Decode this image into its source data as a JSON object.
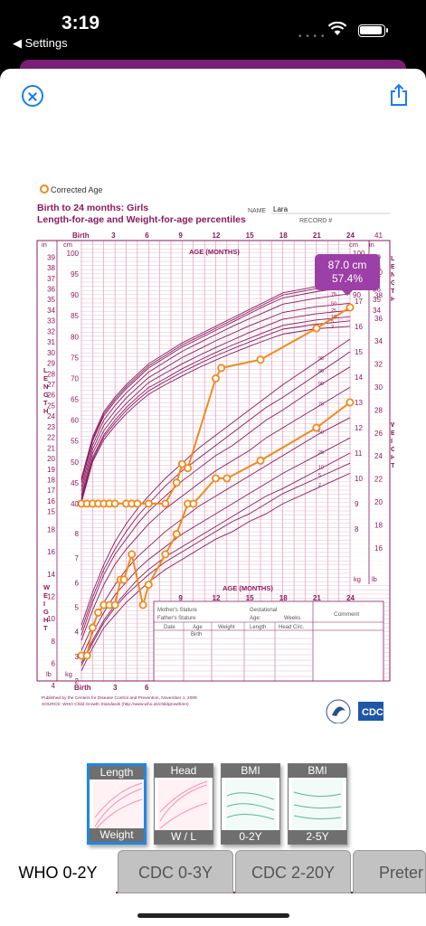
{
  "status_bar": {
    "time": "3:19",
    "back_label": "◀ Settings"
  },
  "chart_data": {
    "type": "line",
    "legend": "Corrected Age",
    "title_line1": "Birth to 24 months: Girls",
    "title_line2": "Length-for-age and Weight-for-age percentiles",
    "name_label": "NAME",
    "name_value": "Lara",
    "record_label": "RECORD #",
    "x_axis_label": "AGE (MONTHS)",
    "x_ticks": [
      "Birth",
      "3",
      "6",
      "9",
      "12",
      "15",
      "18",
      "21",
      "24"
    ],
    "x_ticks_bottom": [
      "Birth",
      "3",
      "6"
    ],
    "x_ticks_weight_axis": [
      "9",
      "12",
      "15",
      "18",
      "21",
      "24"
    ],
    "right_top_tick": "41",
    "length_label": "LENGTH",
    "weight_label": "WEIGHT",
    "cm_label": "cm",
    "in_label": "in",
    "kg_label": "kg",
    "lb_label": "lb",
    "length_cm_ticks": [
      "100",
      "95",
      "90",
      "85",
      "80",
      "75",
      "70",
      "65",
      "60",
      "55",
      "50",
      "45",
      "40"
    ],
    "length_in_ticks": [
      "39",
      "38",
      "37",
      "36",
      "35",
      "34",
      "33",
      "32",
      "31",
      "30",
      "29",
      "28",
      "27",
      "26",
      "25",
      "24",
      "23",
      "22",
      "21",
      "20",
      "19",
      "18",
      "17",
      "16",
      "15"
    ],
    "right_cm_ticks": [
      "100",
      "95",
      "90"
    ],
    "right_in_ticks": [
      "39",
      "38",
      "37",
      "36",
      "35",
      "34"
    ],
    "weight_kg_ticks_right": [
      "18",
      "17",
      "16",
      "15",
      "14",
      "13",
      "12",
      "11",
      "10",
      "9",
      "8"
    ],
    "weight_lb_ticks_right": [
      "40",
      "38",
      "36",
      "34",
      "32",
      "30",
      "28",
      "26",
      "24",
      "22",
      "20",
      "18",
      "16"
    ],
    "weight_kg_ticks_left": [
      "8",
      "7",
      "6",
      "5",
      "4",
      "3",
      "2"
    ],
    "weight_lb_ticks_left": [
      "18",
      "16",
      "14",
      "12",
      "10",
      "8",
      "6",
      "4"
    ],
    "length_percentile_labels": [
      "98",
      "95",
      "90",
      "75",
      "50",
      "25",
      "10",
      "5",
      "2"
    ],
    "weight_percentile_labels": [
      "98",
      "95",
      "90",
      "75",
      "50",
      "25",
      "10",
      "5",
      "2"
    ],
    "table_headers": {
      "mothers_stature": "Mother's Stature",
      "fathers_stature": "Father's Stature",
      "gestational": "Gestational",
      "age": "Age:",
      "weeks": "Weeks",
      "comment": "Comment",
      "cols": [
        "Date",
        "Age",
        "Weight",
        "Length",
        "Head Circ."
      ],
      "birth": "Birth"
    },
    "footer": {
      "line1": "Published by the Centers for Disease Control and Prevention, November 1, 2009",
      "line2": "SOURCE:  WHO Child Growth Standards (http://www.who.int/childgrowth/en)",
      "logo": "CDC"
    },
    "length_series": {
      "name": "Length",
      "x_months": [
        0,
        0.5,
        1,
        1.5,
        2,
        2.5,
        3,
        4,
        4.5,
        5,
        6,
        7.5,
        8.5,
        9,
        9.5,
        12,
        12.5,
        16,
        21,
        24
      ],
      "y_cm": [
        40,
        40,
        40,
        40,
        40,
        40,
        40,
        40,
        40,
        40,
        40,
        40,
        45,
        49.5,
        48.5,
        70,
        72.5,
        74.5,
        82,
        87
      ]
    },
    "weight_series": {
      "name": "Weight",
      "x_months": [
        0,
        0.5,
        1,
        1.5,
        2,
        2.5,
        3,
        3.5,
        3.8,
        4.5,
        5.5,
        6,
        7.5,
        8.5,
        9.5,
        10,
        12,
        13,
        16,
        21,
        24
      ],
      "y_kg": [
        3,
        3,
        4.1,
        4.7,
        5,
        5,
        5,
        6,
        6,
        7,
        5,
        5.8,
        7,
        7.8,
        9,
        9,
        10,
        10,
        10.7,
        12,
        13
      ]
    },
    "tooltip": {
      "value": "87.0 cm",
      "percentile": "57.4%"
    },
    "accent_color": "#f08a1c",
    "grid_color": "#8a1a5e"
  },
  "thumbnails": [
    {
      "top": "Length",
      "bottom": "Weight",
      "selected": true
    },
    {
      "top": "Head",
      "bottom": "W / L",
      "selected": false
    },
    {
      "top": "BMI",
      "bottom": "0-2Y",
      "selected": false
    },
    {
      "top": "BMI",
      "bottom": "2-5Y",
      "selected": false
    }
  ],
  "tabs": [
    {
      "label": "WHO 0-2Y",
      "active": true
    },
    {
      "label": "CDC 0-3Y",
      "active": false
    },
    {
      "label": "CDC 2-20Y",
      "active": false
    },
    {
      "label": "Preter",
      "active": false
    }
  ]
}
